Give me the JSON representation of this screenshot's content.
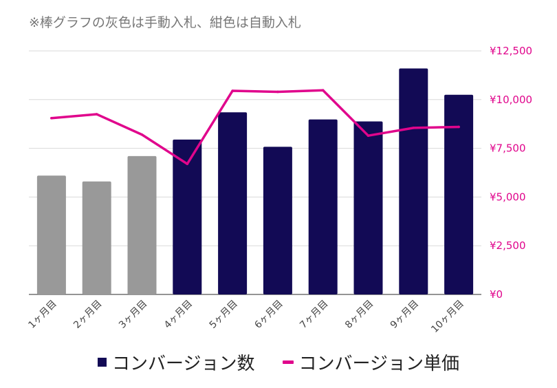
{
  "note": "※棒グラフの灰色は手動入札、紺色は自動入札",
  "colors": {
    "manual_bar": "#999999",
    "auto_bar": "#120a55",
    "line": "#e0058c",
    "grid": "#d9d9d9"
  },
  "chart_data": {
    "type": "bar",
    "categories": [
      "1ヶ月目",
      "2ヶ月目",
      "3ヶ月目",
      "4ヶ月目",
      "5ヶ月目",
      "6ヶ月目",
      "7ヶ月目",
      "8ヶ月目",
      "9ヶ月目",
      "10ヶ月目"
    ],
    "series": [
      {
        "name": "コンバージョン数",
        "type": "bar",
        "values": [
          6100,
          5800,
          7100,
          7950,
          9350,
          7580,
          8980,
          8880,
          11600,
          10250
        ],
        "bar_group": [
          "manual",
          "manual",
          "manual",
          "auto",
          "auto",
          "auto",
          "auto",
          "auto",
          "auto",
          "auto"
        ]
      },
      {
        "name": "コンバージョン単価",
        "type": "line",
        "values": [
          9050,
          9250,
          8200,
          6700,
          10450,
          10400,
          10480,
          8150,
          8550,
          8600
        ]
      }
    ],
    "y_axis": {
      "side": "right",
      "ylim": [
        0,
        12500
      ],
      "ticks": [
        "¥0",
        "¥2,500",
        "¥5,000",
        "¥7,500",
        "¥10,000",
        "¥12,500"
      ],
      "tick_values": [
        0,
        2500,
        5000,
        7500,
        10000,
        12500
      ]
    },
    "grid": true,
    "legend": {
      "position": "bottom",
      "items": [
        {
          "label": "コンバージョン数",
          "marker": "square"
        },
        {
          "label": "コンバージョン単価",
          "marker": "line"
        }
      ]
    }
  }
}
